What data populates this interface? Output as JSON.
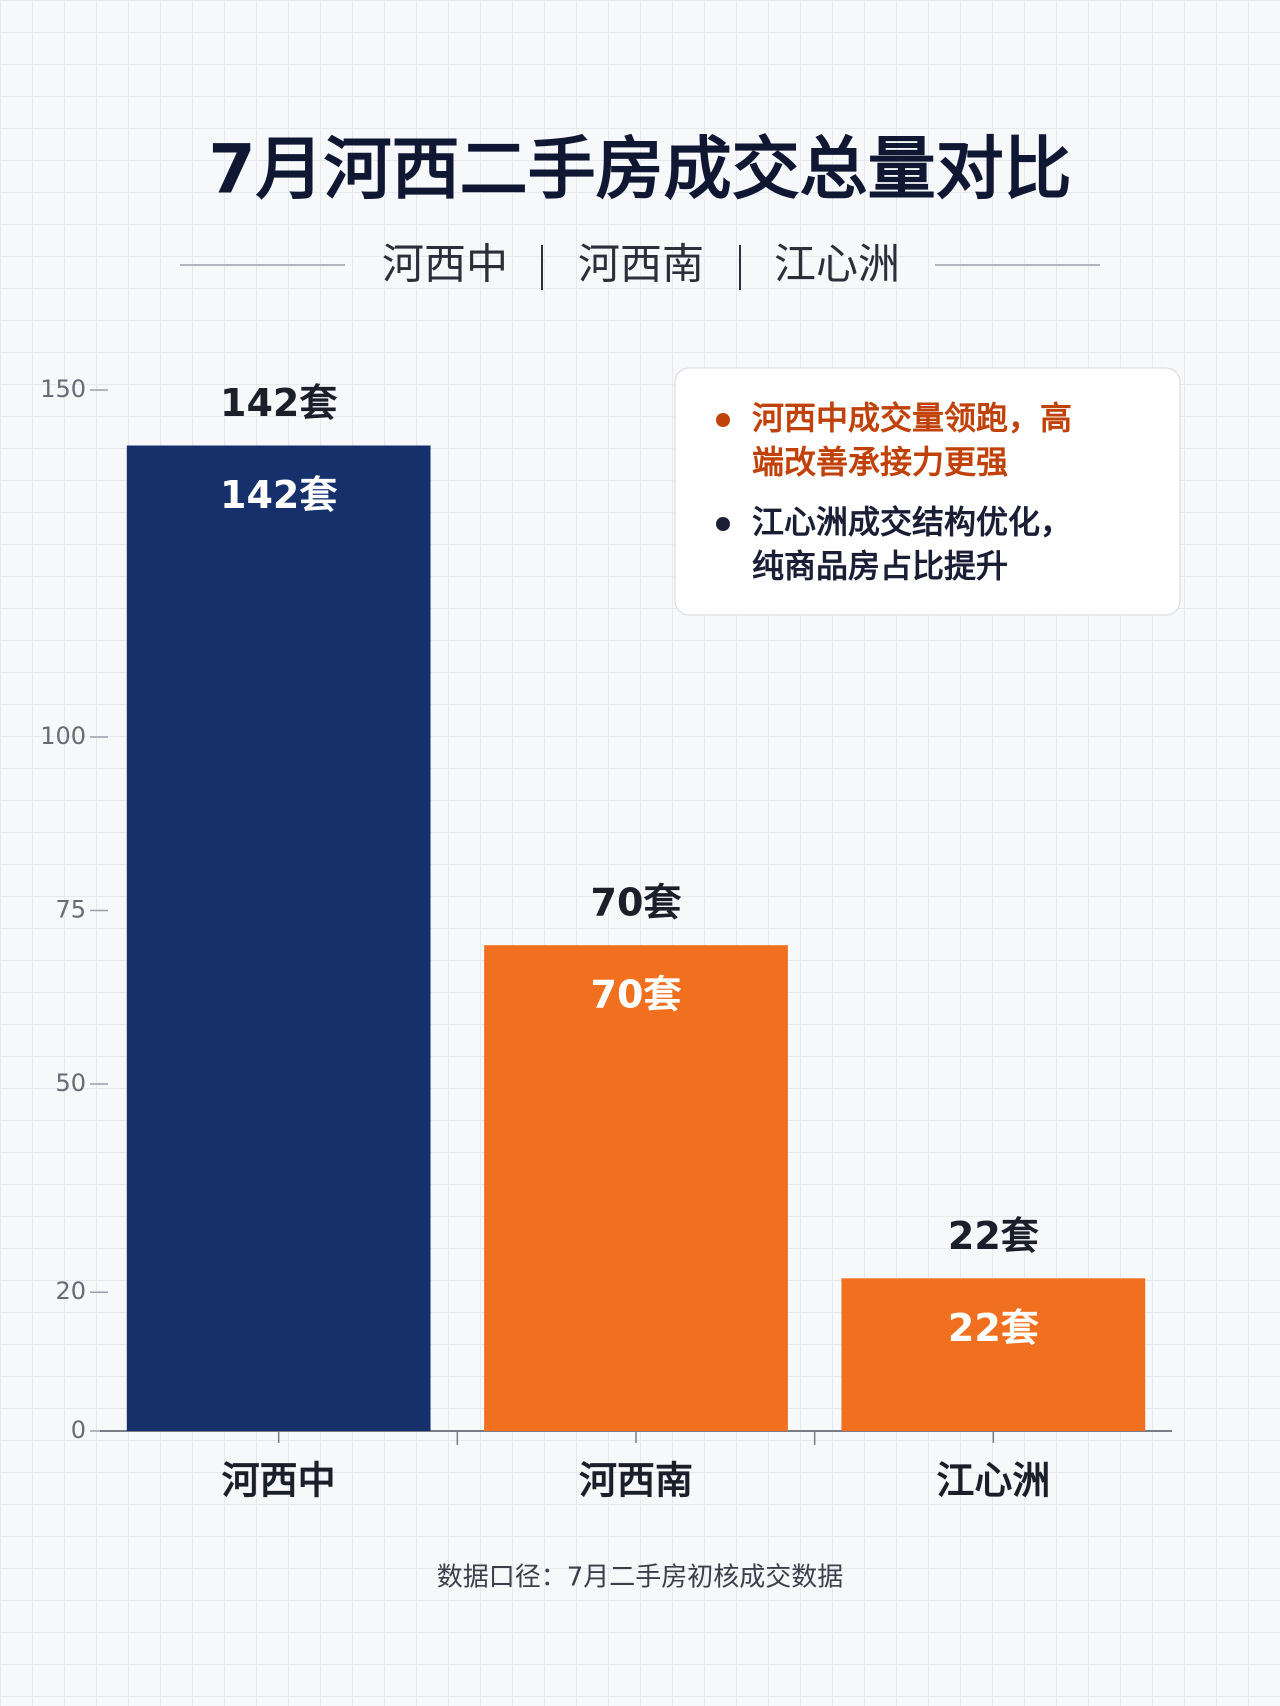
{
  "chart_data": {
    "type": "bar",
    "title": "7月河西二手房成交总量对比",
    "subtitle": [
      "河西中",
      "河西南",
      "江心洲"
    ],
    "categories": [
      "河西中",
      "河西南",
      "江心洲"
    ],
    "values": [
      142,
      70,
      22
    ],
    "value_labels": [
      "142套",
      "70套",
      "22套"
    ],
    "colors": [
      "#15306b",
      "#f0701f",
      "#f0701f"
    ],
    "ylim": [
      0,
      150
    ],
    "yticks": [
      0,
      20,
      50,
      75,
      100,
      150
    ],
    "annotations": [
      {
        "text": "河西中成交量领跑，高端改善承接力更强",
        "color": "#c0420a"
      },
      {
        "text": "江心洲成交结构优化，纯商品房占比提升",
        "color": "#1a1f36"
      }
    ],
    "footnote": "数据口径：7月二手房初核成交数据"
  }
}
